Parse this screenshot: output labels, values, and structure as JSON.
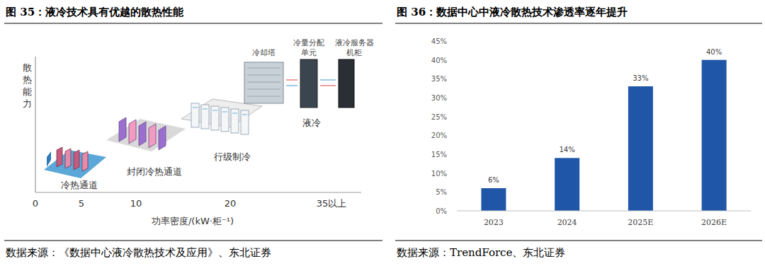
{
  "diagram": {
    "title": "图 35：液冷技术具有优越的散热性能",
    "y_label": "散热能力",
    "x_label": "功率密度/(kW·柜⁻¹)",
    "x_ticks": [
      "0",
      "5",
      "10",
      "20",
      "35以上"
    ],
    "stages": [
      {
        "label": "冷热通道"
      },
      {
        "label": "封闭冷热通道"
      },
      {
        "label": "行级制冷"
      },
      {
        "label": "液冷"
      }
    ],
    "components": [
      {
        "lines": [
          "冷却塔"
        ]
      },
      {
        "lines": [
          "冷量分配",
          "单元"
        ]
      },
      {
        "lines": [
          "液冷服务器",
          "机柜"
        ]
      }
    ],
    "source": "数据来源：《数据中心液冷散热技术及应用》、东北证券"
  },
  "chart_data": {
    "type": "bar",
    "title": "图 36：数据中心中液冷散热技术渗透率逐年提升",
    "categories": [
      "2023",
      "2024",
      "2025E",
      "2026E"
    ],
    "values": [
      6,
      14,
      33,
      40
    ],
    "value_labels": [
      "6%",
      "14%",
      "33%",
      "40%"
    ],
    "color": "#1f56a8",
    "ylim": [
      0,
      45
    ],
    "yticks": [
      {
        "value": 0,
        "label": "0%"
      },
      {
        "value": 5,
        "label": "5%"
      },
      {
        "value": 10,
        "label": "10%"
      },
      {
        "value": 15,
        "label": "15%"
      },
      {
        "value": 20,
        "label": "20%"
      },
      {
        "value": 25,
        "label": "25%"
      },
      {
        "value": 30,
        "label": "30%"
      },
      {
        "value": 35,
        "label": "35%"
      },
      {
        "value": 40,
        "label": "40%"
      },
      {
        "value": 45,
        "label": "45%"
      }
    ],
    "grid": false,
    "data_labels": true,
    "annotations": [
      "数据来源：TrendForce、东北证券"
    ]
  }
}
